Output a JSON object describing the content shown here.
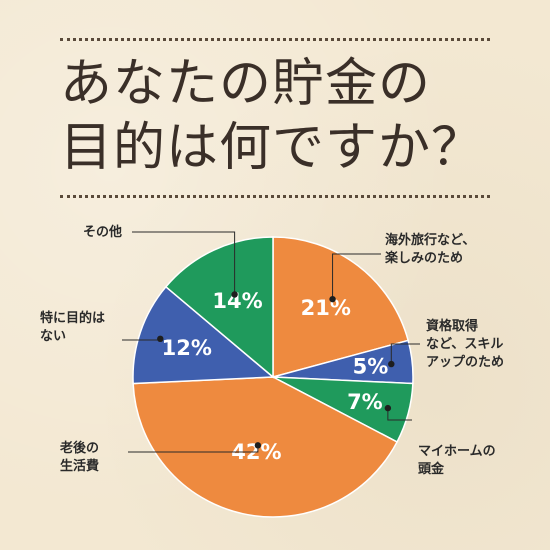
{
  "title_lines": [
    "あなたの貯金の",
    "目的は何ですか？"
  ],
  "chart_data": {
    "type": "pie",
    "title": "あなたの貯金の目的は何ですか？",
    "unit": "%",
    "slices": [
      {
        "label_lines": [
          "海外旅行など、",
          "楽しみのため"
        ],
        "value": 21,
        "display": "21%",
        "color": "#ee8a3f"
      },
      {
        "label_lines": [
          "資格取得",
          "など、スキル",
          "アップのため"
        ],
        "value": 5,
        "display": "5%",
        "color": "#3f5fae"
      },
      {
        "label_lines": [
          "マイホームの",
          "頭金"
        ],
        "value": 7,
        "display": "7%",
        "color": "#1f9a5c"
      },
      {
        "label_lines": [
          "老後の",
          "生活費"
        ],
        "value": 42,
        "display": "42%",
        "color": "#ee8a3f"
      },
      {
        "label_lines": [
          "特に目的は",
          "ない"
        ],
        "value": 12,
        "display": "12%",
        "color": "#3f5fae"
      },
      {
        "label_lines": [
          "その他"
        ],
        "value": 14,
        "display": "14%",
        "color": "#1f9a5c"
      }
    ]
  }
}
